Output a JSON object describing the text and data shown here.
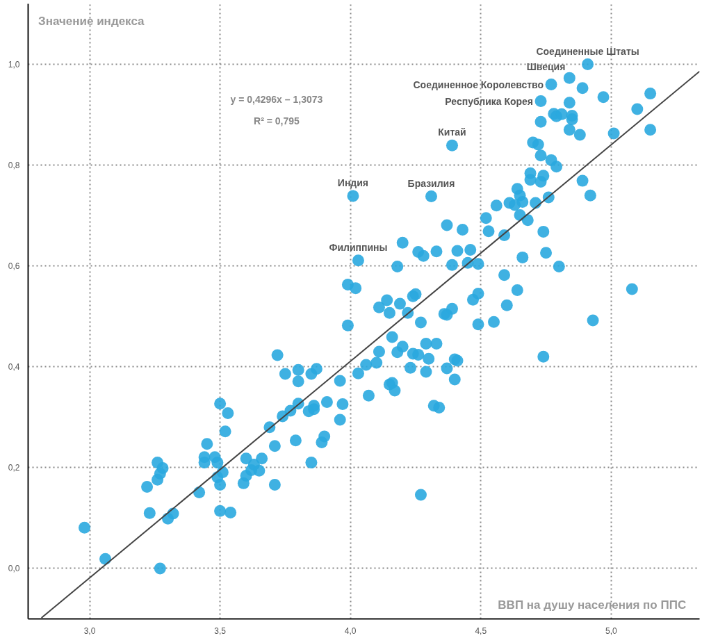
{
  "chart_data": {
    "type": "scatter",
    "xlabel": "ВВП на душу населения по ППС",
    "ylabel": "Значение индекса",
    "xlim": [
      2.764,
      5.339
    ],
    "ylim": [
      -0.1,
      1.12
    ],
    "xticks": [
      {
        "value": 3.0,
        "label": "3,0"
      },
      {
        "value": 3.5,
        "label": "3,5"
      },
      {
        "value": 4.0,
        "label": "4,0"
      },
      {
        "value": 4.5,
        "label": "4,5"
      },
      {
        "value": 5.0,
        "label": "5,0"
      }
    ],
    "yticks": [
      {
        "value": 0.0,
        "label": "0,0"
      },
      {
        "value": 0.2,
        "label": "0,2"
      },
      {
        "value": 0.4,
        "label": "0,4"
      },
      {
        "value": 0.6,
        "label": "0,6"
      },
      {
        "value": 0.8,
        "label": "0,8"
      },
      {
        "value": 1.0,
        "label": "1,0"
      }
    ],
    "grid": true,
    "series": [
      {
        "color": "#2aa8df",
        "marker": "circle",
        "x": [
          2.98,
          3.06,
          3.22,
          3.23,
          3.26,
          3.26,
          3.28,
          3.27,
          3.27,
          3.3,
          3.32,
          3.42,
          3.44,
          3.44,
          3.45,
          3.48,
          3.49,
          3.5,
          3.5,
          3.5,
          3.49,
          3.51,
          3.53,
          3.52,
          3.54,
          3.59,
          3.6,
          3.6,
          3.62,
          3.63,
          3.65,
          3.66,
          3.69,
          3.71,
          3.71,
          3.72,
          3.74,
          3.75,
          3.77,
          3.79,
          3.8,
          3.8,
          3.8,
          3.84,
          3.85,
          3.85,
          3.86,
          3.86,
          3.87,
          3.89,
          3.9,
          3.91,
          3.96,
          3.96,
          3.97,
          3.99,
          3.99,
          4.01,
          4.02,
          4.03,
          4.03,
          4.06,
          4.07,
          4.1,
          4.11,
          4.11,
          4.14,
          4.15,
          4.15,
          4.16,
          4.16,
          4.17,
          4.18,
          4.18,
          4.19,
          4.2,
          4.2,
          4.22,
          4.23,
          4.24,
          4.24,
          4.25,
          4.26,
          4.26,
          4.27,
          4.27,
          4.28,
          4.29,
          4.29,
          4.3,
          4.31,
          4.32,
          4.33,
          4.33,
          4.34,
          4.36,
          4.37,
          4.37,
          4.37,
          4.39,
          4.39,
          4.39,
          4.4,
          4.4,
          4.41,
          4.41,
          4.43,
          4.45,
          4.46,
          4.47,
          4.49,
          4.49,
          4.49,
          4.52,
          4.53,
          4.55,
          4.56,
          4.59,
          4.59,
          4.6,
          4.61,
          4.63,
          4.64,
          4.64,
          4.65,
          4.65,
          4.66,
          4.66,
          4.68,
          4.69,
          4.69,
          4.7,
          4.71,
          4.72,
          4.73,
          4.73,
          4.74,
          4.73,
          4.73,
          4.74,
          4.74,
          4.75,
          4.76,
          4.77,
          4.77,
          4.78,
          4.79,
          4.79,
          4.8,
          4.81,
          4.84,
          4.84,
          4.84,
          4.85,
          4.85,
          4.88,
          4.89,
          4.89,
          4.91,
          4.92,
          4.93,
          4.97,
          5.01,
          5.08,
          5.1,
          5.15,
          5.15
        ],
        "values": [
          0.081,
          0.019,
          0.162,
          0.11,
          0.21,
          0.176,
          0.199,
          0.188,
          0.0,
          0.099,
          0.109,
          0.151,
          0.221,
          0.21,
          0.247,
          0.221,
          0.21,
          0.327,
          0.166,
          0.114,
          0.181,
          0.191,
          0.308,
          0.272,
          0.111,
          0.169,
          0.218,
          0.184,
          0.195,
          0.206,
          0.194,
          0.218,
          0.28,
          0.243,
          0.166,
          0.423,
          0.302,
          0.386,
          0.313,
          0.254,
          0.327,
          0.394,
          0.371,
          0.312,
          0.21,
          0.386,
          0.316,
          0.323,
          0.396,
          0.25,
          0.262,
          0.33,
          0.295,
          0.372,
          0.326,
          0.563,
          0.482,
          0.739,
          0.556,
          0.611,
          0.387,
          0.404,
          0.343,
          0.408,
          0.43,
          0.518,
          0.532,
          0.507,
          0.365,
          0.368,
          0.459,
          0.353,
          0.429,
          0.599,
          0.525,
          0.646,
          0.44,
          0.507,
          0.398,
          0.54,
          0.426,
          0.544,
          0.628,
          0.424,
          0.488,
          0.146,
          0.62,
          0.39,
          0.446,
          0.416,
          0.738,
          0.323,
          0.629,
          0.446,
          0.319,
          0.505,
          0.503,
          0.681,
          0.397,
          0.839,
          0.515,
          0.602,
          0.415,
          0.375,
          0.412,
          0.63,
          0.672,
          0.606,
          0.632,
          0.533,
          0.604,
          0.545,
          0.484,
          0.695,
          0.669,
          0.489,
          0.72,
          0.661,
          0.582,
          0.522,
          0.725,
          0.721,
          0.552,
          0.753,
          0.701,
          0.74,
          0.617,
          0.727,
          0.691,
          0.784,
          0.771,
          0.845,
          0.725,
          0.841,
          0.819,
          0.767,
          0.779,
          0.927,
          0.886,
          0.668,
          0.42,
          0.626,
          0.736,
          0.81,
          0.96,
          0.902,
          0.897,
          0.797,
          0.599,
          0.901,
          0.973,
          0.924,
          0.87,
          0.898,
          0.891,
          0.86,
          0.953,
          0.769,
          1.0,
          0.74,
          0.492,
          0.935,
          0.863,
          0.554,
          0.911,
          0.942,
          0.87
        ]
      },
      {
        "type": "line",
        "color": "#444444",
        "x": [
          2.815,
          5.339
        ],
        "values": [
          -0.098,
          0.986
        ]
      }
    ],
    "annotations": [
      {
        "text": "Соединенные Штаты",
        "x": 4.91,
        "y": 1.0
      },
      {
        "text": "Швеция",
        "x": 4.84,
        "y": 0.973
      },
      {
        "text": "Соединенное Королевство",
        "x": 4.77,
        "y": 0.96
      },
      {
        "text": "Республика Корея",
        "x": 4.73,
        "y": 0.927
      },
      {
        "text": "Китай",
        "x": 4.39,
        "y": 0.839
      },
      {
        "text": "Бразилия",
        "x": 4.31,
        "y": 0.738
      },
      {
        "text": "Индия",
        "x": 4.01,
        "y": 0.739
      },
      {
        "text": "Филиппины",
        "x": 4.03,
        "y": 0.611
      },
      "y = 0,4296x – 1,3073",
      "R² = 0,795"
    ]
  }
}
